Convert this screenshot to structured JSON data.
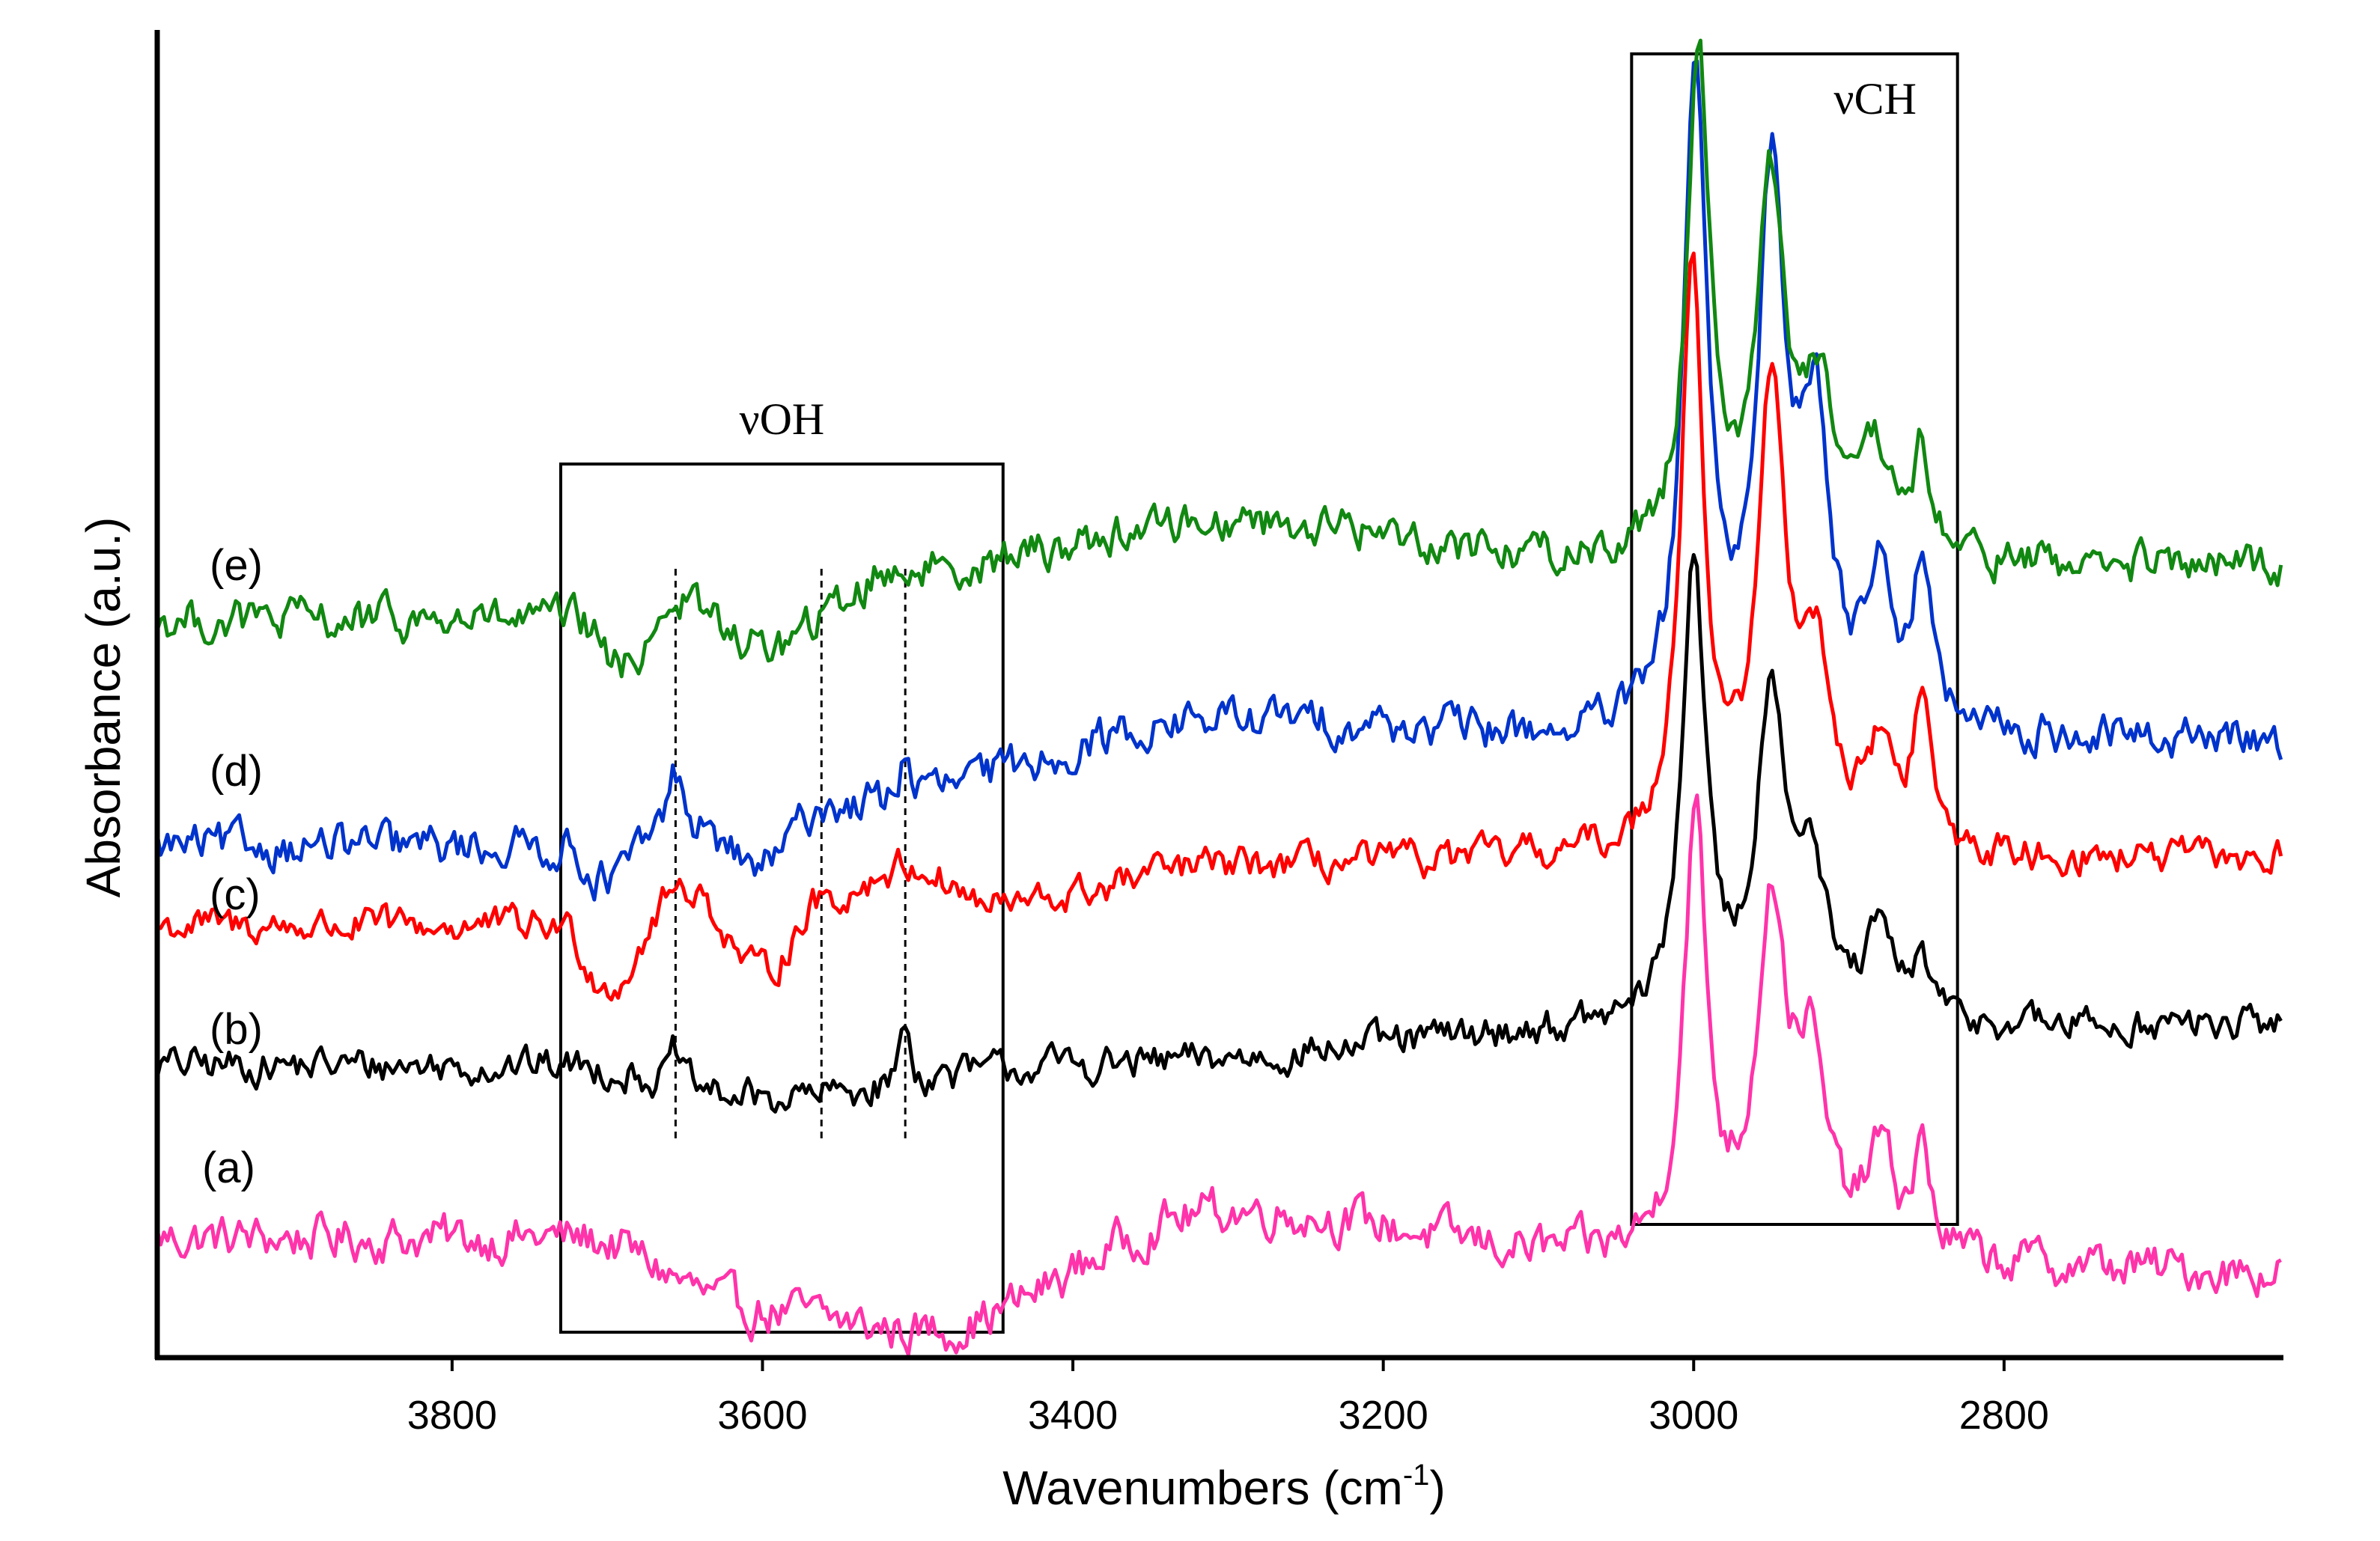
{
  "chart_data": {
    "type": "line",
    "title": "",
    "xlabel": "Wavenumbers (cm",
    "xlabel_sup": "-1",
    "xlabel_close": ")",
    "ylabel": "Absorbance (a.u.)",
    "xlim": [
      3990,
      2620
    ],
    "x_reversed": true,
    "ylim": [
      0,
      10
    ],
    "x_ticks": [
      3800,
      3600,
      3400,
      3200,
      3000,
      2800
    ],
    "x_tick_labels": [
      "3800",
      "3600",
      "3400",
      "3200",
      "3000",
      "2800"
    ],
    "grid": false,
    "legend": "inline labels at left",
    "annotations": [
      {
        "label": "νOH",
        "x_range": [
          3730,
          3445
        ]
      },
      {
        "label": "νCH",
        "x_range": [
          3040,
          2830
        ]
      }
    ],
    "marker_lines_x": [
      3656,
      3562,
      3508
    ],
    "series": [
      {
        "name": "(a)",
        "color": "#ff33aa",
        "baseline": 0.9,
        "noise": 0.14,
        "features": [
          {
            "x0": 3720,
            "x1": 3600,
            "dy": -0.55
          },
          {
            "x0": 3600,
            "x1": 3500,
            "dy": -0.15
          },
          {
            "x0": 3500,
            "x1": 3300,
            "dy": 0.9
          },
          {
            "x0": 3300,
            "x1": 3050,
            "dy": -0.35
          },
          {
            "x0": 3050,
            "x1": 2620,
            "dy": -0.1
          }
        ],
        "peaks": [
          {
            "x": 2999,
            "height": 3.25,
            "width": 9
          },
          {
            "x": 2950,
            "height": 2.55,
            "width": 11
          },
          {
            "x": 2925,
            "height": 1.35,
            "width": 12
          },
          {
            "x": 2880,
            "height": 0.75,
            "width": 10
          },
          {
            "x": 2853,
            "height": 0.75,
            "width": 7
          }
        ]
      },
      {
        "name": "(b)",
        "color": "#000000",
        "baseline": 2.2,
        "noise": 0.11,
        "features": [
          {
            "x0": 3730,
            "x1": 3600,
            "dy": -0.25
          },
          {
            "x0": 3600,
            "x1": 3400,
            "dy": 0.25
          },
          {
            "x0": 3400,
            "x1": 3050,
            "dy": 0.25
          },
          {
            "x0": 3050,
            "x1": 2620,
            "dy": 0.05
          }
        ],
        "peaks": [
          {
            "x": 3000,
            "height": 3.55,
            "width": 9
          },
          {
            "x": 2950,
            "height": 2.45,
            "width": 11
          },
          {
            "x": 2925,
            "height": 1.1,
            "width": 12
          },
          {
            "x": 2880,
            "height": 0.65,
            "width": 10
          },
          {
            "x": 2853,
            "height": 0.45,
            "width": 7
          },
          {
            "x": 3656,
            "height": 0.25,
            "width": 4
          },
          {
            "x": 3508,
            "height": 0.45,
            "width": 4
          }
        ]
      },
      {
        "name": "(c)",
        "color": "#ff0000",
        "baseline": 3.25,
        "noise": 0.11,
        "features": [
          {
            "x0": 3730,
            "x1": 3700,
            "dy": -0.45
          },
          {
            "x0": 3700,
            "x1": 3650,
            "dy": 0.75
          },
          {
            "x0": 3650,
            "x1": 3600,
            "dy": -0.65
          },
          {
            "x0": 3600,
            "x1": 3560,
            "dy": 0.55
          },
          {
            "x0": 3560,
            "x1": 3505,
            "dy": 0.25
          },
          {
            "x0": 3505,
            "x1": 3450,
            "dy": -0.3
          },
          {
            "x0": 3450,
            "x1": 3300,
            "dy": 0.3
          },
          {
            "x0": 3300,
            "x1": 3050,
            "dy": 0.05
          }
        ],
        "peaks": [
          {
            "x": 3001,
            "height": 4.4,
            "width": 9
          },
          {
            "x": 2950,
            "height": 3.35,
            "width": 11
          },
          {
            "x": 2922,
            "height": 1.4,
            "width": 12
          },
          {
            "x": 2880,
            "height": 0.75,
            "width": 10
          },
          {
            "x": 2853,
            "height": 1.1,
            "width": 7
          }
        ]
      },
      {
        "name": "(d)",
        "color": "#0033cc",
        "baseline": 3.85,
        "noise": 0.13,
        "features": [
          {
            "x0": 3730,
            "x1": 3700,
            "dy": -0.25
          },
          {
            "x0": 3700,
            "x1": 3656,
            "dy": 0.45
          },
          {
            "x0": 3656,
            "x1": 3600,
            "dy": -0.35
          },
          {
            "x0": 3600,
            "x1": 3560,
            "dy": 0.45
          },
          {
            "x0": 3560,
            "x1": 3300,
            "dy": 0.65
          },
          {
            "x0": 3300,
            "x1": 3050,
            "dy": -0.15
          }
        ],
        "peaks": [
          {
            "x": 2999,
            "height": 5.0,
            "width": 9
          },
          {
            "x": 2950,
            "height": 4.0,
            "width": 11
          },
          {
            "x": 2922,
            "height": 2.2,
            "width": 12
          },
          {
            "x": 2880,
            "height": 1.15,
            "width": 10
          },
          {
            "x": 2853,
            "height": 1.2,
            "width": 7
          },
          {
            "x": 3656,
            "height": 0.35,
            "width": 4
          },
          {
            "x": 3508,
            "height": 0.35,
            "width": 4
          }
        ]
      },
      {
        "name": "(e)",
        "color": "#118811",
        "baseline": 5.55,
        "noise": 0.13,
        "features": [
          {
            "x0": 3720,
            "x1": 3690,
            "dy": -0.35
          },
          {
            "x0": 3690,
            "x1": 3656,
            "dy": 0.5
          },
          {
            "x0": 3656,
            "x1": 3600,
            "dy": -0.35
          },
          {
            "x0": 3600,
            "x1": 3505,
            "dy": 0.6
          },
          {
            "x0": 3505,
            "x1": 3300,
            "dy": 0.35
          },
          {
            "x0": 3300,
            "x1": 3050,
            "dy": -0.3
          },
          {
            "x0": 3050,
            "x1": 2620,
            "dy": -0.05
          }
        ],
        "peaks": [
          {
            "x": 2997,
            "height": 3.75,
            "width": 9
          },
          {
            "x": 2950,
            "height": 2.7,
            "width": 11
          },
          {
            "x": 2920,
            "height": 1.2,
            "width": 12
          },
          {
            "x": 2882,
            "height": 0.7,
            "width": 10
          },
          {
            "x": 2853,
            "height": 0.75,
            "width": 7
          }
        ]
      }
    ]
  }
}
